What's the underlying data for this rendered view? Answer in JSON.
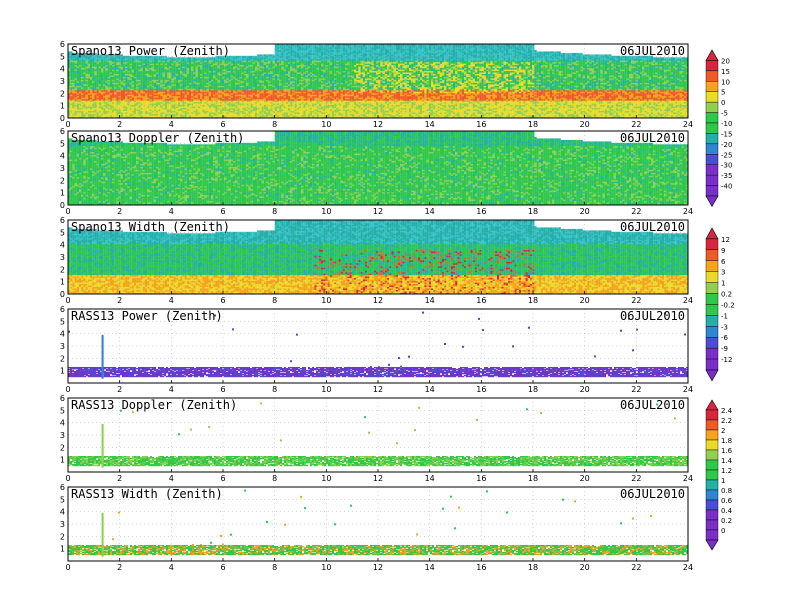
{
  "chart_data": [
    {
      "type": "heatmap",
      "title": "Spano13 Power (Zenith)",
      "date": "06JUL2010",
      "xlim": [
        0,
        24
      ],
      "ylim": [
        0,
        6
      ],
      "xticks": [
        "0",
        "2",
        "4",
        "6",
        "8",
        "10",
        "12",
        "14",
        "16",
        "18",
        "20",
        "22",
        "24"
      ],
      "yticks": [
        "0",
        "1",
        "2",
        "3",
        "4",
        "5",
        "6"
      ],
      "colorbar": [
        "20",
        "15",
        "10",
        "5",
        "0",
        "-5",
        "-10",
        "-15",
        "-20",
        "-25",
        "-30",
        "-35",
        "-40"
      ],
      "colors": [
        "#d7263d",
        "#f05a28",
        "#f7a31c",
        "#eadb2a",
        "#8fd14f",
        "#2ec94a",
        "#23b0a8",
        "#2f86d1",
        "#4a4ed6",
        "#7a2fc8"
      ]
    },
    {
      "type": "heatmap",
      "title": "Spano13 Doppler (Zenith)",
      "date": "06JUL2010",
      "xlim": [
        0,
        24
      ],
      "ylim": [
        0,
        6
      ],
      "xticks": [
        "0",
        "2",
        "4",
        "6",
        "8",
        "10",
        "12",
        "14",
        "16",
        "18",
        "20",
        "22",
        "24"
      ],
      "yticks": [
        "0",
        "1",
        "2",
        "3",
        "4",
        "5",
        "6"
      ]
    },
    {
      "type": "heatmap",
      "title": "Spano13 Width (Zenith)",
      "date": "06JUL2010",
      "xlim": [
        0,
        24
      ],
      "ylim": [
        0,
        6
      ],
      "xticks": [
        "0",
        "2",
        "4",
        "6",
        "8",
        "10",
        "12",
        "14",
        "16",
        "18",
        "20",
        "22",
        "24"
      ],
      "yticks": [
        "0",
        "1",
        "2",
        "3",
        "4",
        "5",
        "6"
      ],
      "colorbar": [
        "12",
        "9",
        "6",
        "3",
        "1",
        "0.2",
        "-0.2",
        "-1",
        "-3",
        "-6",
        "-9",
        "-12"
      ]
    },
    {
      "type": "heatmap",
      "title": "RASS13 Power (Zenith)",
      "date": "06JUL2010",
      "xlim": [
        0,
        24
      ],
      "ylim": [
        0,
        6
      ],
      "xticks": [
        "0",
        "2",
        "4",
        "6",
        "8",
        "10",
        "12",
        "14",
        "16",
        "18",
        "20",
        "22",
        "24"
      ],
      "yticks": [
        "1",
        "2",
        "3",
        "4",
        "5",
        "6"
      ]
    },
    {
      "type": "heatmap",
      "title": "RASS13 Doppler (Zenith)",
      "date": "06JUL2010",
      "xlim": [
        0,
        24
      ],
      "ylim": [
        0,
        6
      ],
      "xticks": [
        "0",
        "2",
        "4",
        "6",
        "8",
        "10",
        "12",
        "14",
        "16",
        "18",
        "20",
        "22",
        "24"
      ],
      "yticks": [
        "1",
        "2",
        "3",
        "4",
        "5",
        "6"
      ],
      "colorbar": [
        "2.4",
        "2.2",
        "2",
        "1.8",
        "1.6",
        "1.4",
        "1.2",
        "1",
        "0.8",
        "0.6",
        "0.4",
        "0.2",
        "0"
      ]
    },
    {
      "type": "heatmap",
      "title": "RASS13 Width (Zenith)",
      "date": "06JUL2010",
      "xlim": [
        0,
        24
      ],
      "ylim": [
        0,
        6
      ],
      "xticks": [
        "0",
        "2",
        "4",
        "6",
        "8",
        "10",
        "12",
        "14",
        "16",
        "18",
        "20",
        "22",
        "24"
      ],
      "yticks": [
        "1",
        "2",
        "3",
        "4",
        "5",
        "6"
      ]
    }
  ]
}
